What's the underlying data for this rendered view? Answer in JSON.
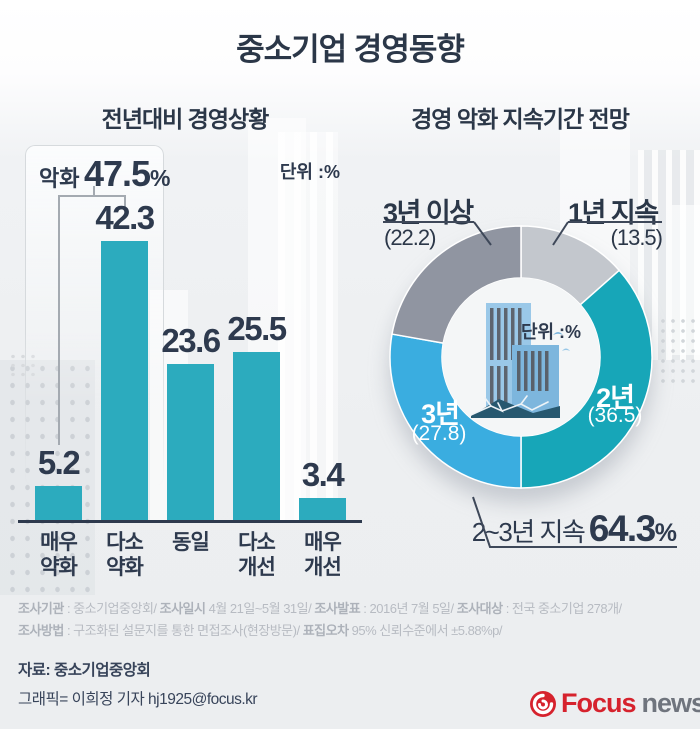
{
  "page": {
    "title": "중소기업 경영동향"
  },
  "chart_data": [
    {
      "type": "bar",
      "title": "전년대비 경영상황",
      "unit_label": "단위 :%",
      "categories": [
        "매우\n약화",
        "다소\n약화",
        "동일",
        "다소\n개선",
        "매우\n개선"
      ],
      "values": [
        5.2,
        42.3,
        23.6,
        25.5,
        3.4
      ],
      "bar_color": "#2cabbe",
      "ylim": [
        0,
        45
      ],
      "annotation": {
        "label": "악화",
        "value": "47.5",
        "unit": "%",
        "covers": [
          "매우 약화",
          "다소 약화"
        ]
      }
    },
    {
      "type": "pie",
      "subtype": "donut",
      "title": "경영 악화 지속기간 전망",
      "unit_label": "단위 :%",
      "start_angle_deg": 0,
      "direction": "clockwise-from-top",
      "segments": [
        {
          "label": "1년 지속",
          "value": 13.5,
          "value_display": "(13.5)",
          "color": "#c3c7cd"
        },
        {
          "label": "2년",
          "value": 36.5,
          "value_display": "(36.5)",
          "color": "#17a6b8"
        },
        {
          "label": "3년",
          "value": 27.8,
          "value_display": "(27.8)",
          "color": "#3aade0"
        },
        {
          "label": "3년 이상",
          "value": 22.2,
          "value_display": "(22.2)",
          "color": "#9095a1"
        }
      ],
      "callout": {
        "label": "2~3년 지속",
        "value": "64.3",
        "unit": "%"
      }
    }
  ],
  "footer": {
    "f1_label": "조사기관",
    "f1_text": " : 중소기업중앙회/ ",
    "f2_label": "조사일시",
    "f2_text": " 4월 21일~5월 31일/ ",
    "f3_label": "조사발표",
    "f3_text": " : 2016년 7월 5일/ ",
    "f4_label": "조사대상",
    "f4_text": " : 전국 중소기업 278개/",
    "f5_label": "조사방법",
    "f5_text": " : 구조화된 설문지를 통한 면접조사(현장방문)/ ",
    "f6_label": "표집오차",
    "f6_text": " 95% 신뢰수준에서 ±5.88%p/"
  },
  "credits": {
    "source": "자료: 중소기업중앙회",
    "graphic": "그래픽= 이희정 기자 hj1925@focus.kr"
  },
  "logo": {
    "brand": "Focus",
    "suffix": "news"
  }
}
